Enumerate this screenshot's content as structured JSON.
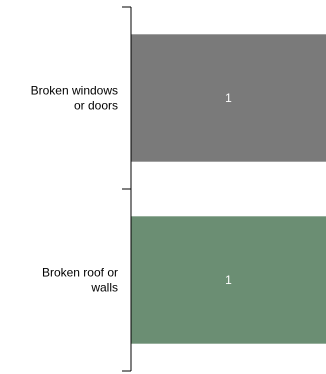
{
  "chart_data": {
    "type": "bar",
    "orientation": "horizontal",
    "categories": [
      "Broken windows or doors",
      "Broken roof or walls"
    ],
    "category_label_lines": [
      [
        "Broken windows",
        "or doors"
      ],
      [
        "Broken roof or",
        "walls"
      ]
    ],
    "values": [
      1,
      1
    ],
    "data_labels": [
      "1",
      "1"
    ],
    "bar_colors": [
      "#7a7a7a",
      "#6b8e73"
    ],
    "data_label_color": "#ffffff",
    "axis_color": "#000000",
    "xlim": [
      0,
      1
    ],
    "grid": false,
    "legend": "none",
    "title": "",
    "xlabel": "",
    "ylabel": ""
  }
}
